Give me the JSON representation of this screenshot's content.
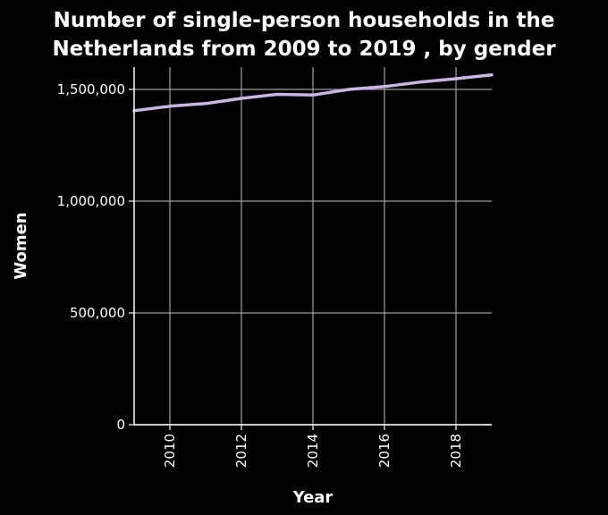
{
  "chart_data": {
    "type": "line",
    "title_lines": [
      "Number of single-person households in the",
      "Netherlands from 2009 to 2019 , by gender"
    ],
    "xlabel": "Year",
    "ylabel": "Women",
    "xlim": [
      2009,
      2019
    ],
    "ylim": [
      0,
      1600000
    ],
    "x_ticks": [
      {
        "value": 2010,
        "label": "2010"
      },
      {
        "value": 2012,
        "label": "2012"
      },
      {
        "value": 2014,
        "label": "2014"
      },
      {
        "value": 2016,
        "label": "2016"
      },
      {
        "value": 2018,
        "label": "2018"
      }
    ],
    "y_ticks": [
      {
        "value": 0,
        "label": "0"
      },
      {
        "value": 500000,
        "label": "500,000"
      },
      {
        "value": 1000000,
        "label": "1,000,000"
      },
      {
        "value": 1500000,
        "label": "1,500,000"
      }
    ],
    "grid": true,
    "series": [
      {
        "x": [
          2009,
          2010,
          2011,
          2012,
          2013,
          2014,
          2015,
          2016,
          2017,
          2018,
          2019
        ],
        "values": [
          1405000,
          1425000,
          1437000,
          1460000,
          1478000,
          1475000,
          1500000,
          1513000,
          1533000,
          1548000,
          1565000
        ]
      }
    ],
    "colors": {
      "background": "#000000",
      "plot_area": "#000000",
      "line": "#c9b6e4",
      "grid": "#9e9e9e",
      "axis": "#ffffff",
      "text": "#ffffff"
    }
  }
}
